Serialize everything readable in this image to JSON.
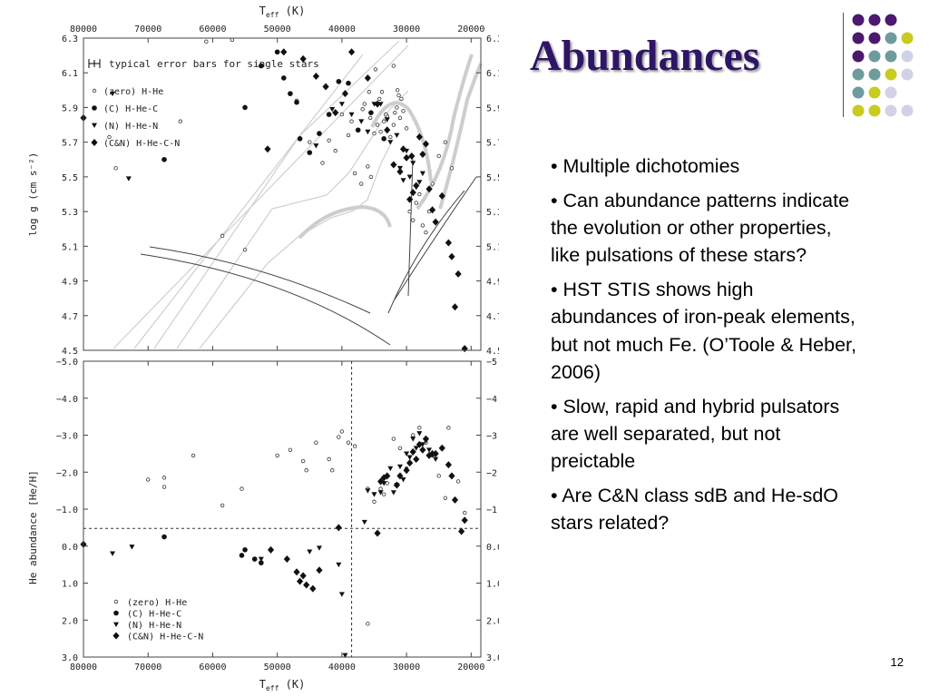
{
  "slide": {
    "title": "Abundances",
    "page_number": "12",
    "bullets": [
      "• Multiple dichotomies",
      "• Can abundance patterns indicate the evolution or other properties, like pulsations of these stars?",
      "• HST STIS shows high abundances of iron-peak elements, but not much Fe. (O’Toole & Heber, 2006)",
      "• Slow, rapid and hybrid pulsators are well separated, but not preictable",
      "• Are C&N class sdB and He-sdO stars related?"
    ],
    "decor_colors": {
      "purple": "#4b1a6e",
      "teal": "#6e9c9e",
      "yellow": "#c8cc1f",
      "lavender": "#d2d2e6"
    }
  },
  "chart_data": [
    {
      "type": "scatter",
      "title": "",
      "xlabel": "T",
      "xlabel_sub": "eff",
      "xlabel_unit": "(K)",
      "ylabel": "log g (cm s⁻²)",
      "xlim": [
        80000,
        18500
      ],
      "ylim": [
        6.3,
        4.5
      ],
      "x_ticks": [
        "80000",
        "70000",
        "60000",
        "50000",
        "40000",
        "30000",
        "20000"
      ],
      "x_tick_values": [
        80000,
        70000,
        60000,
        50000,
        40000,
        30000,
        20000
      ],
      "y_ticks": [
        "4.5",
        "4.7",
        "4.9",
        "5.1",
        "5.3",
        "5.5",
        "5.7",
        "5.9",
        "6.1",
        "6.3"
      ],
      "y_tick_values": [
        4.5,
        4.7,
        4.9,
        5.1,
        5.3,
        5.5,
        5.7,
        5.9,
        6.1,
        6.3
      ],
      "error_bar_label": "typical error bars for single stars",
      "legend": [
        {
          "marker": "open-circle",
          "label": "(zero) H-He"
        },
        {
          "marker": "filled-circle",
          "label": "(C)  H-He-C"
        },
        {
          "marker": "triangle",
          "label": "(N)  H-He-N"
        },
        {
          "marker": "diamond",
          "label": "(C&N) H-He-C-N"
        }
      ],
      "series": [
        {
          "marker": "open-circle",
          "x": [
            58500,
            55000,
            38000,
            37000,
            36000,
            35500,
            35000,
            34500,
            34000,
            33500,
            33000,
            32500,
            32000,
            31800,
            31500,
            31000,
            30500,
            30000,
            29500,
            29000,
            28500,
            28000,
            27500,
            27000,
            26500,
            26000,
            25000,
            24000,
            23000,
            36500,
            35800,
            34200,
            33200,
            31200,
            41000,
            43000,
            45000,
            42000,
            40000,
            39000,
            38500,
            36800,
            33800,
            47000,
            75000,
            76000,
            65000,
            61000,
            57000,
            32000,
            31400,
            30800,
            34800,
            35600
          ],
          "y": [
            5.16,
            5.08,
            5.52,
            5.46,
            5.56,
            5.5,
            5.75,
            5.8,
            5.76,
            5.82,
            5.85,
            5.73,
            5.8,
            5.87,
            5.9,
            5.84,
            5.88,
            5.78,
            5.3,
            5.25,
            5.35,
            5.4,
            5.22,
            5.18,
            5.3,
            5.46,
            5.62,
            5.7,
            5.55,
            5.92,
            5.99,
            5.95,
            5.86,
            5.97,
            5.65,
            5.58,
            5.7,
            5.71,
            5.86,
            5.74,
            5.82,
            5.89,
            5.99,
            5.94,
            5.55,
            5.73,
            5.82,
            6.28,
            6.29,
            6.14,
            6.0,
            5.95,
            6.12,
            5.84
          ]
        },
        {
          "marker": "filled-circle",
          "x": [
            67500,
            55000,
            48000,
            46500,
            45000,
            43500,
            42000,
            40500,
            39000,
            37500,
            35500,
            33500,
            50000,
            47000,
            52500,
            49000
          ],
          "y": [
            5.6,
            5.9,
            5.98,
            5.72,
            5.64,
            5.75,
            5.86,
            6.05,
            6.04,
            5.77,
            5.87,
            5.72,
            6.22,
            5.93,
            6.14,
            6.07
          ]
        },
        {
          "marker": "triangle",
          "x": [
            73000,
            75500,
            44000,
            41500,
            40000,
            38500,
            37000,
            36000,
            35000,
            34000,
            33000,
            32500,
            31500,
            31000,
            30500,
            30000,
            29500,
            29000,
            28500,
            28000,
            27500
          ],
          "y": [
            5.49,
            5.98,
            5.68,
            5.89,
            5.92,
            5.86,
            5.82,
            5.76,
            5.92,
            5.92,
            5.83,
            5.7,
            5.74,
            5.55,
            5.48,
            5.65,
            5.5,
            5.58,
            5.44,
            5.47,
            5.52
          ]
        },
        {
          "marker": "diamond",
          "x": [
            80000,
            51500,
            49000,
            46000,
            44000,
            42500,
            41000,
            39500,
            38500,
            36000,
            34500,
            33000,
            32000,
            31000,
            30500,
            30000,
            29500,
            29000,
            28500,
            28000,
            27500,
            27000,
            26000,
            25500,
            24500,
            23000,
            22000,
            21000,
            22500,
            23500,
            26500,
            29200
          ],
          "y": [
            5.84,
            5.66,
            6.22,
            6.18,
            6.08,
            6.02,
            5.87,
            5.98,
            6.22,
            6.07,
            5.92,
            5.77,
            5.57,
            5.53,
            5.66,
            5.61,
            5.37,
            5.41,
            5.45,
            5.73,
            5.63,
            5.69,
            5.31,
            5.24,
            5.39,
            5.04,
            4.94,
            4.51,
            4.75,
            5.12,
            5.43,
            5.62
          ]
        }
      ]
    },
    {
      "type": "scatter",
      "title": "",
      "xlabel": "T",
      "xlabel_sub": "eff",
      "xlabel_unit": "(K)",
      "ylabel": "He abundance [He/H]",
      "xlim": [
        80000,
        18500
      ],
      "ylim": [
        -5.0,
        3.0
      ],
      "x_ticks": [
        "80000",
        "70000",
        "60000",
        "50000",
        "40000",
        "30000",
        "20000"
      ],
      "x_tick_values": [
        80000,
        70000,
        60000,
        50000,
        40000,
        30000,
        20000
      ],
      "y_ticks": [
        "3.0",
        "2.0",
        "1.0",
        "0.0",
        "−1.0",
        "−2.0",
        "−3.0",
        "−4.0",
        "−5.0"
      ],
      "y_tick_values": [
        3,
        2,
        1,
        0,
        -1,
        -2,
        -3,
        -4,
        -5
      ],
      "ref_lines": {
        "x": 38500,
        "y": -0.48
      },
      "legend": [
        {
          "marker": "open-circle",
          "label": "(zero) H-He"
        },
        {
          "marker": "filled-circle",
          "label": "(C)  H-He-C"
        },
        {
          "marker": "triangle",
          "label": "(N)  H-He-N"
        },
        {
          "marker": "diamond",
          "label": "(C&N) H-He-C-N"
        }
      ],
      "series": [
        {
          "marker": "open-circle",
          "x": [
            70000,
            67500,
            67500,
            63000,
            58500,
            55500,
            50000,
            48000,
            46000,
            44000,
            42000,
            41500,
            40500,
            40000,
            39000,
            38000,
            36000,
            35000,
            34000,
            33500,
            33000,
            32000,
            31000,
            30000,
            29000,
            28000,
            27000,
            26000,
            25000,
            24000,
            23500,
            22000,
            21000,
            36000,
            45500
          ],
          "y": [
            -1.8,
            -1.6,
            -1.85,
            -2.45,
            -1.1,
            -1.55,
            -2.45,
            -2.6,
            -2.3,
            -2.8,
            -2.35,
            -2.05,
            -2.95,
            -3.1,
            -2.8,
            -2.7,
            2.1,
            -1.2,
            -1.55,
            -1.4,
            -1.7,
            -2.9,
            -2.65,
            -2.1,
            -3.0,
            -3.2,
            -2.8,
            -2.45,
            -1.9,
            -1.3,
            -3.2,
            -1.75,
            -0.9,
            -1.55,
            -2.05
          ]
        },
        {
          "marker": "filled-circle",
          "x": [
            67500,
            55500,
            55000,
            53500,
            52500
          ],
          "y": [
            -0.25,
            0.25,
            0.1,
            0.35,
            0.45
          ]
        },
        {
          "marker": "triangle",
          "x": [
            75500,
            72500,
            52500,
            45000,
            43500,
            40500,
            40000,
            39500,
            36500,
            36000,
            35000,
            34000,
            33500,
            32500,
            32000,
            31500,
            31000,
            30500,
            30000,
            29500,
            29000,
            28500,
            28000,
            27500,
            27000,
            26500,
            25500
          ],
          "y": [
            0.2,
            0.02,
            0.35,
            0.15,
            0.05,
            0.5,
            1.3,
            2.95,
            -0.65,
            -1.5,
            -1.4,
            -1.45,
            -1.7,
            -2.1,
            -1.45,
            -1.65,
            -2.15,
            -1.8,
            -2.5,
            -2.4,
            -2.9,
            -2.65,
            -3.05,
            -2.75,
            -2.85,
            -2.6,
            -2.35
          ]
        },
        {
          "marker": "diamond",
          "x": [
            80000,
            51000,
            48500,
            47000,
            46500,
            46000,
            45500,
            44500,
            43500,
            40500,
            34500,
            34000,
            33500,
            33000,
            31500,
            31000,
            30000,
            29500,
            29000,
            28500,
            28000,
            27500,
            27000,
            26500,
            26000,
            25500,
            24500,
            23500,
            23000,
            21500,
            21000,
            22500
          ],
          "y": [
            -0.05,
            0.1,
            0.35,
            0.7,
            0.95,
            0.8,
            1.05,
            1.15,
            0.65,
            -0.5,
            -0.35,
            -1.75,
            -1.85,
            -1.9,
            -1.65,
            -1.9,
            -2.05,
            -2.25,
            -2.55,
            -2.35,
            -2.75,
            -2.6,
            -2.9,
            -2.45,
            -2.5,
            -2.5,
            -2.65,
            -2.2,
            -1.9,
            -0.4,
            -0.7,
            -1.25
          ]
        }
      ]
    }
  ]
}
